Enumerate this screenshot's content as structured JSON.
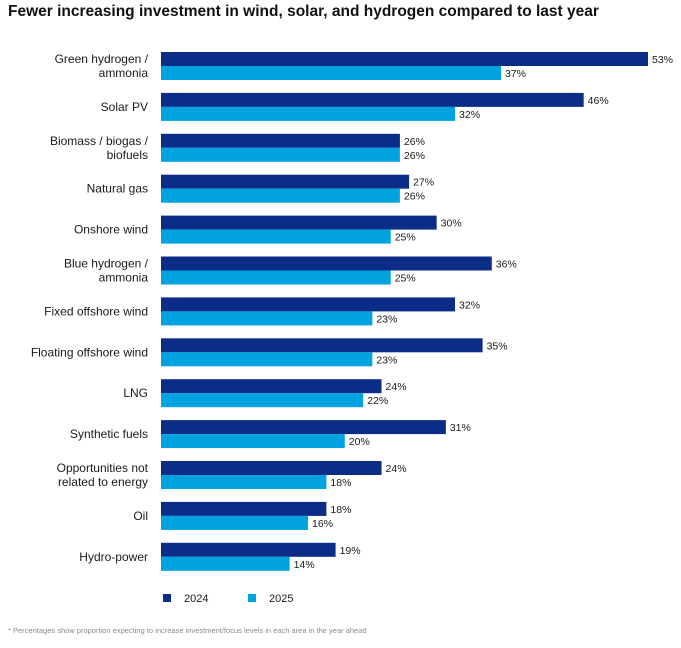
{
  "title": "Fewer increasing investment in wind, solar, and hydrogen compared to last year",
  "footnote": "* Percentages show proportion expecting to increase investment/focus levels in each area in the year ahead",
  "colors": {
    "series_2024": "#0b2d87",
    "series_2025": "#00a3e0"
  },
  "chart_data": {
    "type": "bar",
    "orientation": "horizontal",
    "categories": [
      [
        "Green hydrogen /",
        "ammonia"
      ],
      [
        "Solar PV"
      ],
      [
        "Biomass / biogas /",
        "biofuels"
      ],
      [
        "Natural gas"
      ],
      [
        "Onshore wind"
      ],
      [
        "Blue hydrogen /",
        "ammonia"
      ],
      [
        "Fixed offshore wind"
      ],
      [
        "Floating offshore wind"
      ],
      [
        "LNG"
      ],
      [
        "Synthetic fuels"
      ],
      [
        "Opportunities not",
        "related to energy"
      ],
      [
        "Oil"
      ],
      [
        "Hydro-power"
      ]
    ],
    "series": [
      {
        "name": "2024",
        "values": [
          53,
          46,
          26,
          27,
          30,
          36,
          32,
          35,
          24,
          31,
          24,
          18,
          19
        ]
      },
      {
        "name": "2025",
        "values": [
          37,
          32,
          26,
          26,
          25,
          25,
          23,
          23,
          22,
          20,
          18,
          16,
          14
        ]
      }
    ],
    "value_suffix": "%",
    "xlim": [
      0,
      53
    ],
    "grid": false,
    "legend_position": "bottom-left"
  }
}
